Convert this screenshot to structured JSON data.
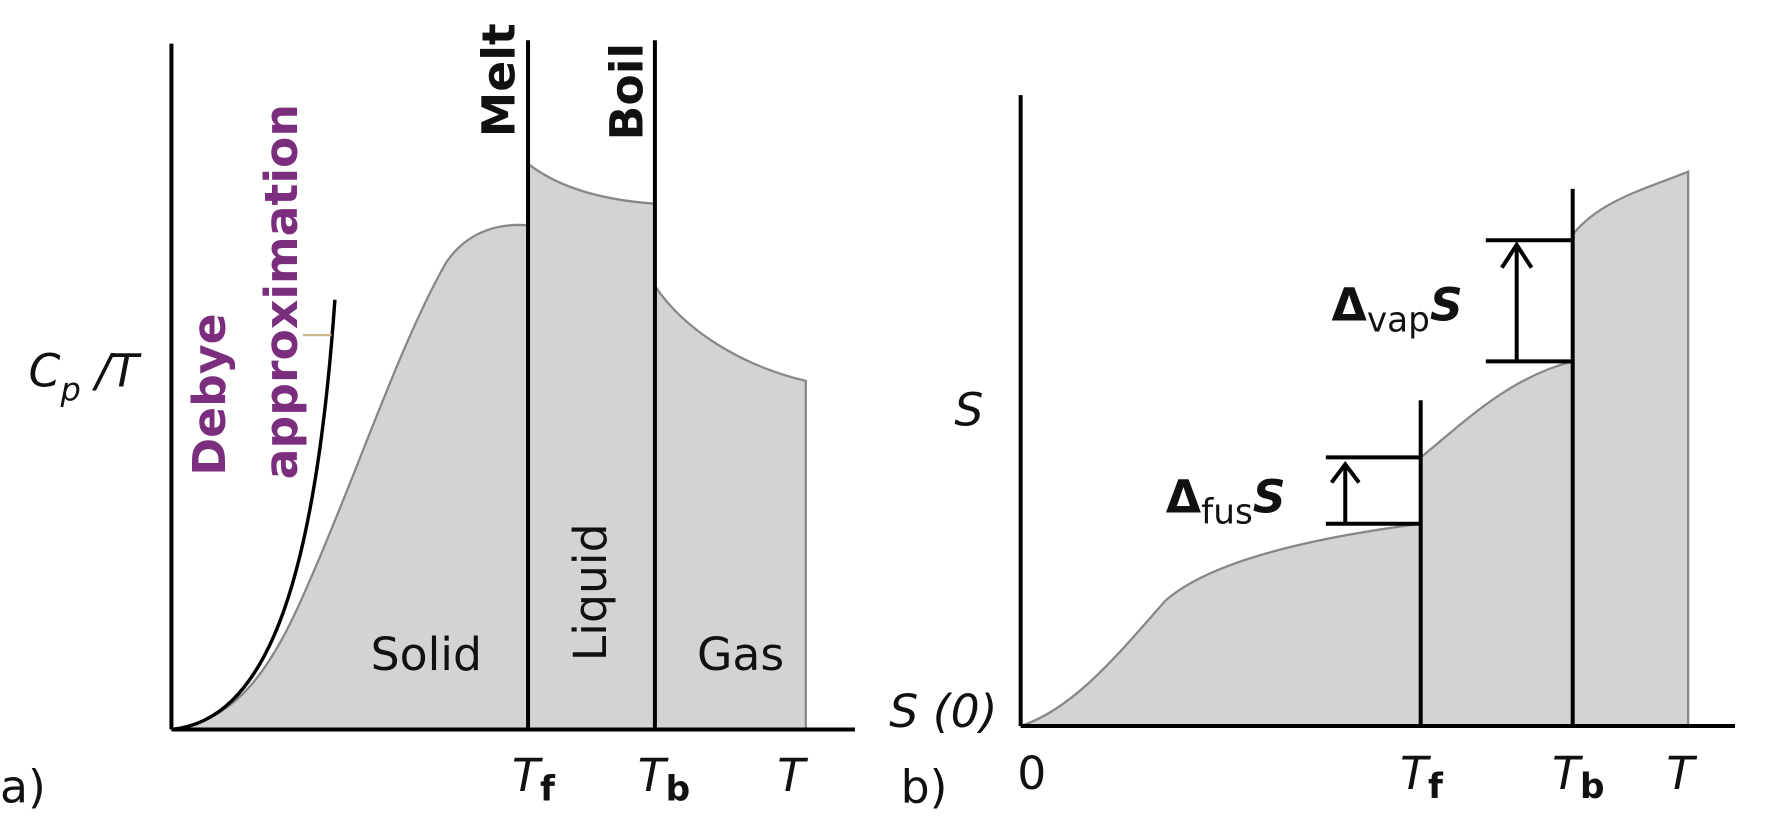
{
  "panel_a": {
    "label": "a)",
    "y_axis_label": {
      "main": "C",
      "sub": "p",
      "rest": " /T"
    },
    "debye_label": [
      "Debye",
      "approximation"
    ],
    "phase_lines": [
      "Melt",
      "Boil"
    ],
    "regions": [
      "Solid",
      "Liquid",
      "Gas"
    ],
    "x_ticks": [
      {
        "main": "T",
        "sub": "f"
      },
      {
        "main": "T",
        "sub": "b"
      },
      {
        "main": "T"
      }
    ]
  },
  "panel_b": {
    "label": "b)",
    "y_axis_label": "S",
    "y_origin_label": "S (0)",
    "x_ticks": [
      {
        "main": "0"
      },
      {
        "main": "T",
        "sub": "f"
      },
      {
        "main": "T",
        "sub": "b"
      },
      {
        "main": "T"
      }
    ],
    "vap_label": {
      "main": "Δ",
      "sub": "vap",
      "rest": "S"
    },
    "fus_label": {
      "main": "Δ",
      "sub": "fus",
      "rest": "S"
    }
  }
}
